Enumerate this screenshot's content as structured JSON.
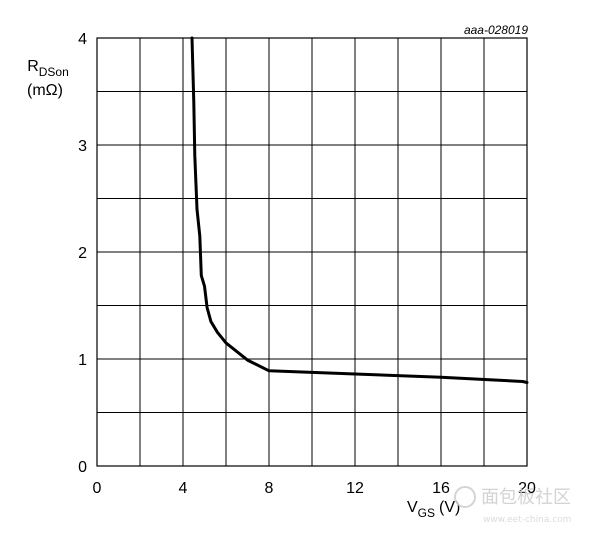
{
  "chart_data": {
    "type": "line",
    "reference": "aaa-028019",
    "ylabel_main": "R",
    "ylabel_sub": "DSon",
    "ylabel_unit": "(mΩ)",
    "xlabel_main": "V",
    "xlabel_sub": "GS",
    "xlabel_unit": "(V)",
    "xlim": [
      0,
      20
    ],
    "ylim": [
      0,
      4
    ],
    "x_ticks": [
      0,
      4,
      8,
      12,
      16,
      20
    ],
    "y_ticks": [
      0,
      1,
      2,
      3,
      4
    ],
    "grid_x_step": 2,
    "grid_y_step": 0.5,
    "grid": true,
    "series": [
      {
        "x": [
          4.42,
          4.5,
          4.55,
          4.65,
          4.78,
          4.85,
          5.0,
          5.12,
          5.3,
          5.6,
          6.0,
          7.0,
          8.0,
          12.0,
          16.0,
          19.8,
          20.0
        ],
        "y": [
          4.0,
          3.4,
          2.9,
          2.4,
          2.15,
          1.78,
          1.68,
          1.48,
          1.35,
          1.25,
          1.15,
          0.99,
          0.89,
          0.86,
          0.83,
          0.79,
          0.78
        ]
      }
    ]
  },
  "watermark": {
    "text": "面包板社区",
    "url": "www.eet-china.com"
  }
}
